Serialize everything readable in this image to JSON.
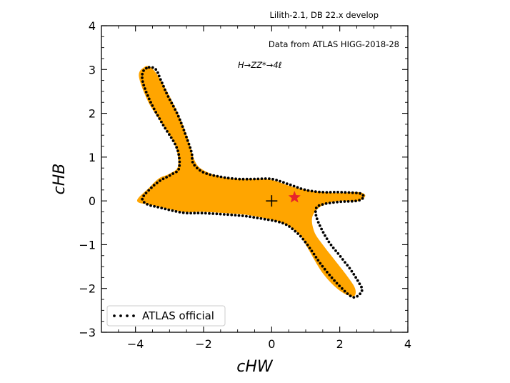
{
  "chart_data": {
    "type": "area",
    "title": "Lilith-2.1, DB 22.x develop",
    "annotations": [
      "Data from ATLAS HIGG-2018-28",
      "H→ZZ*→4ℓ"
    ],
    "xlabel": "cHW",
    "ylabel": "cHB",
    "xlim": [
      -5,
      4
    ],
    "ylim": [
      -3,
      4
    ],
    "xticks": [
      -4,
      -2,
      0,
      2,
      4
    ],
    "yticks": [
      -3,
      -2,
      -1,
      0,
      1,
      2,
      3,
      4
    ],
    "xtick_labels": [
      "−4",
      "−2",
      "0",
      "2",
      "4"
    ],
    "ytick_labels": [
      "−3",
      "−2",
      "−1",
      "0",
      "1",
      "2",
      "3",
      "4"
    ],
    "grid": false,
    "legend_position": "lower-left",
    "series": [
      {
        "name": "Lilith region",
        "kind": "filled-region",
        "color": "#FFA500",
        "points": [
          [
            -3.55,
            3.05
          ],
          [
            -3.25,
            2.75
          ],
          [
            -2.75,
            2.0
          ],
          [
            -2.45,
            1.4
          ],
          [
            -2.25,
            0.9
          ],
          [
            -2.0,
            0.7
          ],
          [
            -1.5,
            0.55
          ],
          [
            -1.0,
            0.5
          ],
          [
            -0.5,
            0.5
          ],
          [
            0.0,
            0.48
          ],
          [
            0.5,
            0.35
          ],
          [
            1.0,
            0.25
          ],
          [
            1.5,
            0.2
          ],
          [
            2.0,
            0.18
          ],
          [
            2.55,
            0.2
          ],
          [
            2.75,
            0.12
          ],
          [
            2.55,
            0.0
          ],
          [
            2.0,
            0.0
          ],
          [
            1.5,
            -0.1
          ],
          [
            1.2,
            -0.35
          ],
          [
            1.25,
            -0.7
          ],
          [
            1.5,
            -1.0
          ],
          [
            1.85,
            -1.35
          ],
          [
            2.2,
            -1.7
          ],
          [
            2.45,
            -2.0
          ],
          [
            2.4,
            -2.18
          ],
          [
            2.0,
            -2.05
          ],
          [
            1.5,
            -1.65
          ],
          [
            1.0,
            -1.0
          ],
          [
            0.8,
            -0.75
          ],
          [
            0.3,
            -0.5
          ],
          [
            -0.5,
            -0.35
          ],
          [
            -1.0,
            -0.3
          ],
          [
            -2.0,
            -0.25
          ],
          [
            -2.6,
            -0.25
          ],
          [
            -3.5,
            -0.1
          ],
          [
            -3.95,
            0.0
          ],
          [
            -3.6,
            0.3
          ],
          [
            -3.3,
            0.52
          ],
          [
            -3.0,
            0.62
          ],
          [
            -2.75,
            0.8
          ],
          [
            -2.85,
            1.3
          ],
          [
            -3.3,
            1.85
          ],
          [
            -3.65,
            2.3
          ],
          [
            -3.9,
            2.85
          ],
          [
            -3.75,
            3.05
          ]
        ]
      },
      {
        "name": "ATLAS official",
        "kind": "dotted-contour",
        "color": "#000000",
        "points": [
          [
            -3.6,
            3.05
          ],
          [
            -3.4,
            3.0
          ],
          [
            -3.25,
            2.75
          ],
          [
            -3.05,
            2.4
          ],
          [
            -2.75,
            1.95
          ],
          [
            -2.5,
            1.45
          ],
          [
            -2.35,
            1.1
          ],
          [
            -2.3,
            0.85
          ],
          [
            -2.0,
            0.65
          ],
          [
            -1.5,
            0.55
          ],
          [
            -1.0,
            0.5
          ],
          [
            -0.5,
            0.5
          ],
          [
            0.0,
            0.5
          ],
          [
            0.5,
            0.38
          ],
          [
            1.0,
            0.25
          ],
          [
            1.5,
            0.2
          ],
          [
            2.0,
            0.2
          ],
          [
            2.5,
            0.18
          ],
          [
            2.65,
            0.15
          ],
          [
            2.7,
            0.08
          ],
          [
            2.5,
            0.0
          ],
          [
            2.0,
            -0.02
          ],
          [
            1.5,
            -0.08
          ],
          [
            1.3,
            -0.18
          ],
          [
            1.35,
            -0.45
          ],
          [
            1.65,
            -0.9
          ],
          [
            2.0,
            -1.25
          ],
          [
            2.3,
            -1.55
          ],
          [
            2.55,
            -1.85
          ],
          [
            2.65,
            -2.05
          ],
          [
            2.4,
            -2.2
          ],
          [
            2.0,
            -1.95
          ],
          [
            1.5,
            -1.5
          ],
          [
            1.0,
            -0.95
          ],
          [
            0.7,
            -0.7
          ],
          [
            0.3,
            -0.5
          ],
          [
            -0.5,
            -0.38
          ],
          [
            -1.0,
            -0.33
          ],
          [
            -2.0,
            -0.28
          ],
          [
            -2.6,
            -0.27
          ],
          [
            -3.3,
            -0.15
          ],
          [
            -3.65,
            -0.08
          ],
          [
            -3.8,
            0.05
          ],
          [
            -3.6,
            0.25
          ],
          [
            -3.3,
            0.45
          ],
          [
            -2.95,
            0.6
          ],
          [
            -2.72,
            0.75
          ],
          [
            -2.78,
            1.2
          ],
          [
            -3.2,
            1.75
          ],
          [
            -3.55,
            2.25
          ],
          [
            -3.78,
            2.7
          ],
          [
            -3.78,
            2.95
          ]
        ]
      }
    ],
    "markers": [
      {
        "name": "best-fit",
        "symbol": "star",
        "x": 0.67,
        "y": 0.08,
        "color": "#E8252A"
      },
      {
        "name": "sm-point",
        "symbol": "plus",
        "x": 0.0,
        "y": 0.0,
        "color": "#000000"
      }
    ],
    "legend": [
      {
        "label": "ATLAS official",
        "style": "dotted",
        "color": "#000000"
      }
    ]
  }
}
